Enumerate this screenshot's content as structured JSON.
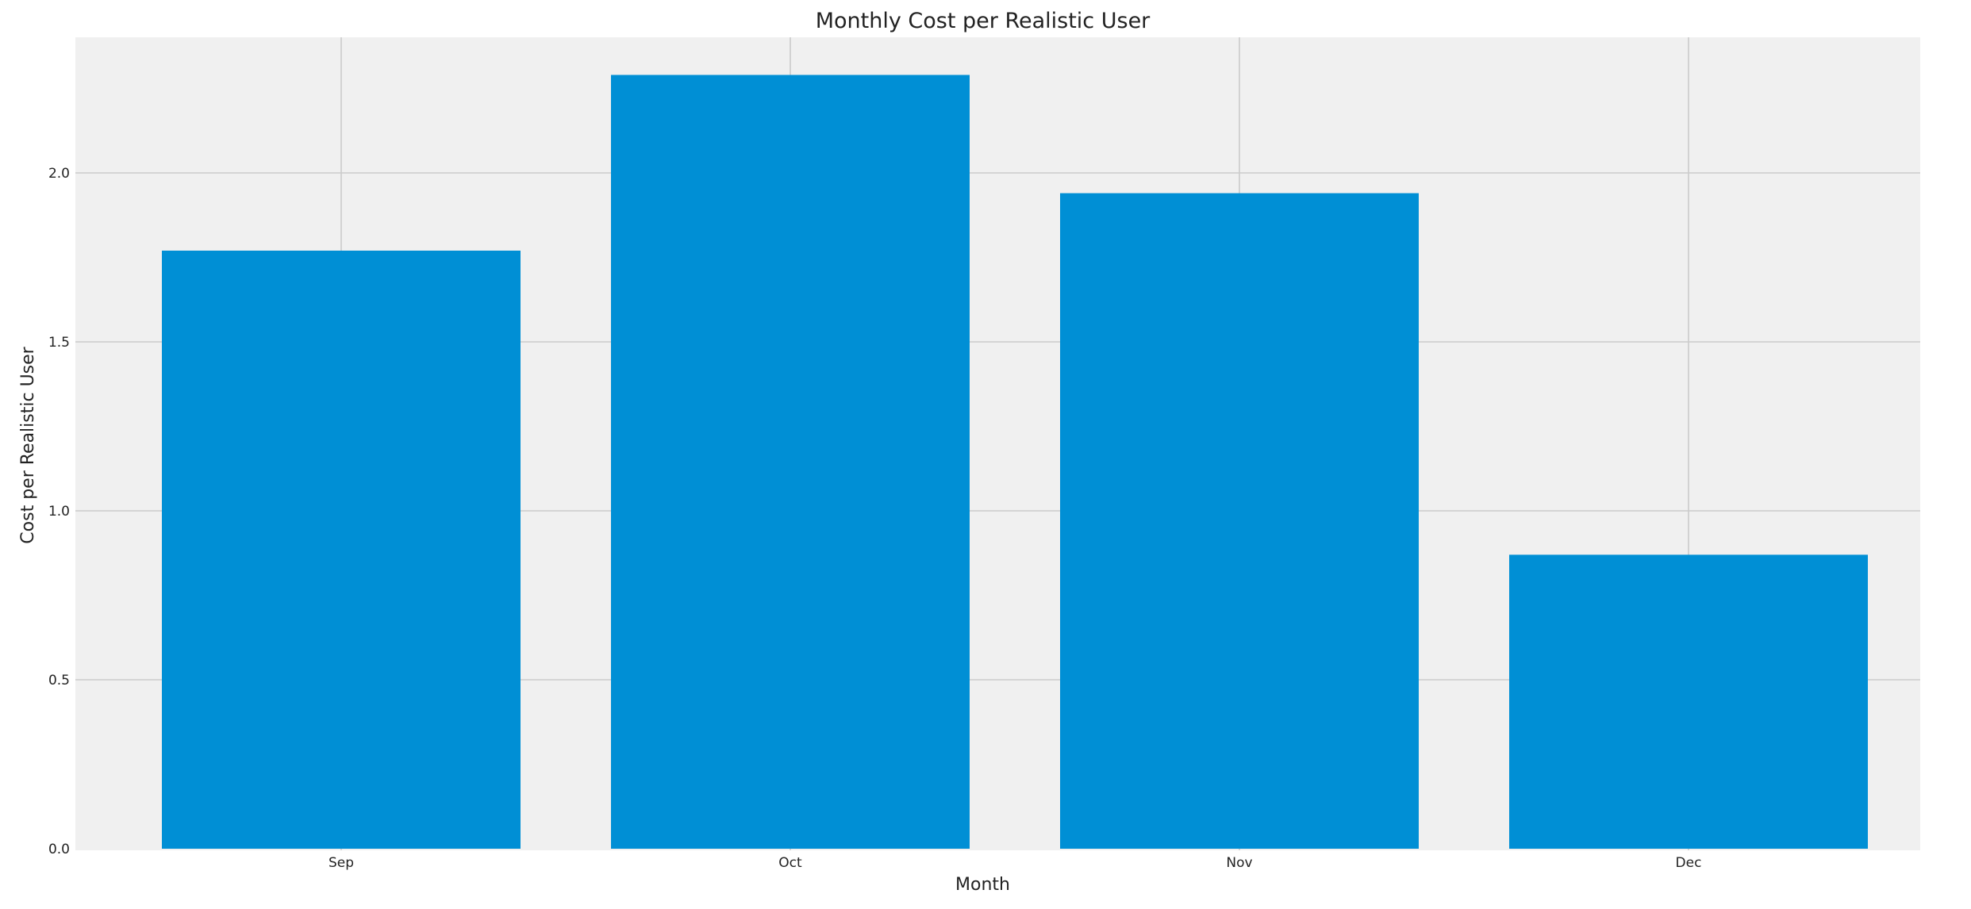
{
  "chart_data": {
    "type": "bar",
    "title": "Monthly Cost per Realistic User",
    "xlabel": "Month",
    "ylabel": "Cost per Realistic User",
    "categories": [
      "Sep",
      "Oct",
      "Nov",
      "Dec"
    ],
    "values": [
      1.77,
      2.29,
      1.94,
      0.87
    ],
    "ylim": [
      0,
      2.4
    ],
    "yticks": [
      0.0,
      0.5,
      1.0,
      1.5,
      2.0
    ],
    "ytick_labels": [
      "0.0",
      "0.5",
      "1.0",
      "1.5",
      "2.0"
    ],
    "grid": true,
    "colors": {
      "bar": "#008fd5",
      "plot_background": "#f0f0f0",
      "figure_background": "#ffffff",
      "grid": "#cbcbcb"
    }
  }
}
